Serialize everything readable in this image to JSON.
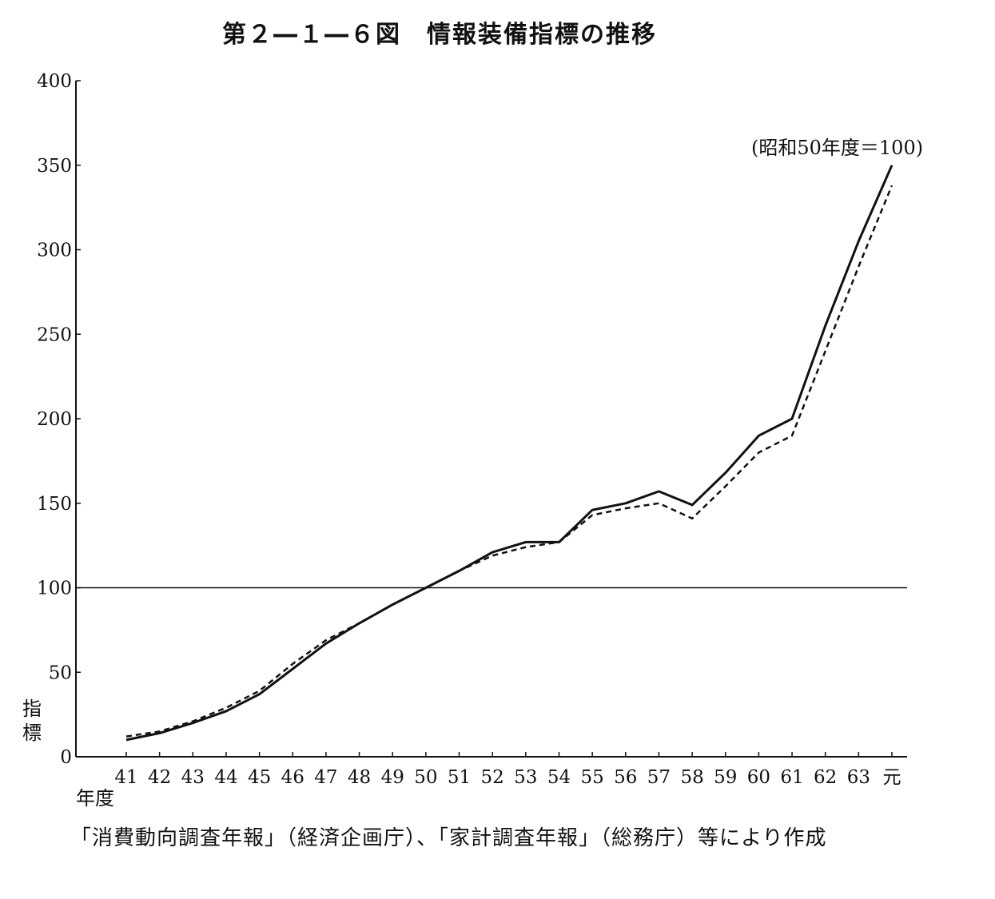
{
  "title": "第２―１―６図　情報装備指標の推移",
  "unit_note": "(昭和50年度＝100)",
  "ylabel": "指標",
  "xlabel": "年度",
  "source": "「消費動向調査年報」（経済企画庁）、「家計調査年報」（総務庁）等により作成",
  "chart_data": {
    "type": "line",
    "title": "第２―１―６図　情報装備指標の推移",
    "xlabel": "年度",
    "ylabel": "指標",
    "categories": [
      "41",
      "42",
      "43",
      "44",
      "45",
      "46",
      "47",
      "48",
      "49",
      "50",
      "51",
      "52",
      "53",
      "54",
      "55",
      "56",
      "57",
      "58",
      "59",
      "60",
      "61",
      "62",
      "63",
      "元"
    ],
    "ylim": [
      0,
      400
    ],
    "yticks": [
      0,
      50,
      100,
      150,
      200,
      250,
      300,
      350,
      400
    ],
    "reference_line": 100,
    "grid": false,
    "series": [
      {
        "style": "solid",
        "values": [
          10,
          14,
          20,
          27,
          37,
          52,
          67,
          79,
          90,
          100,
          110,
          121,
          127,
          127,
          146,
          150,
          157,
          149,
          168,
          190,
          200,
          255,
          305,
          350
        ]
      },
      {
        "style": "dashed",
        "values": [
          12,
          15,
          21,
          29,
          39,
          55,
          69,
          79,
          90,
          100,
          110,
          119,
          124,
          127,
          143,
          147,
          150,
          141,
          160,
          180,
          190,
          240,
          290,
          338
        ]
      }
    ]
  }
}
